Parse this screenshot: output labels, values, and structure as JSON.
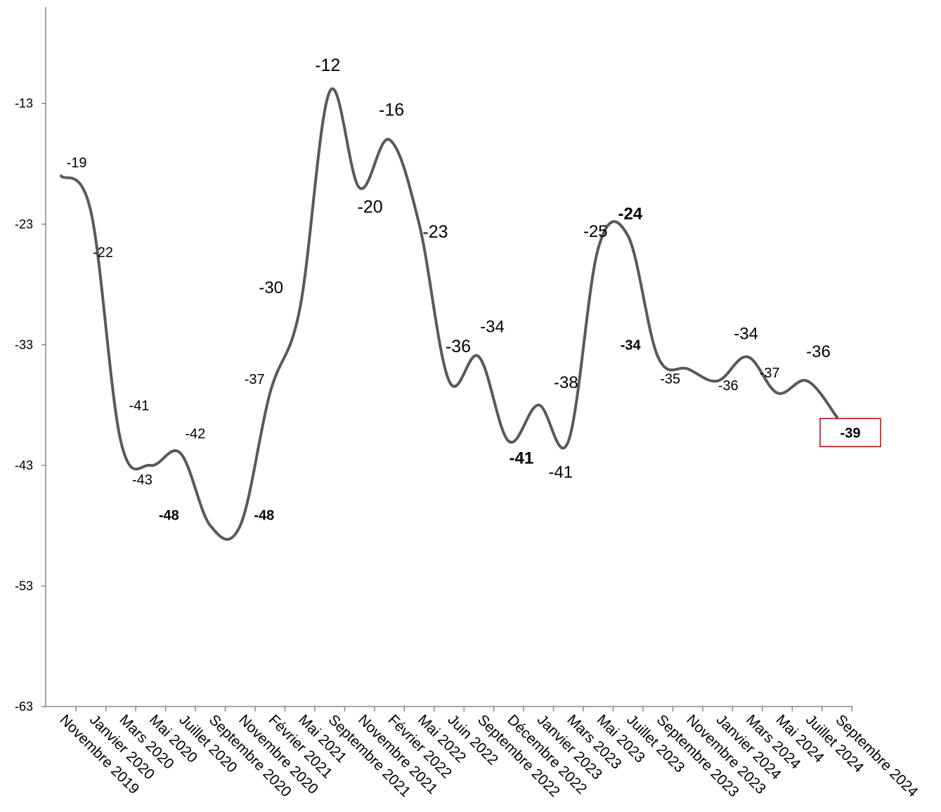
{
  "chart_data": {
    "type": "line",
    "title": "",
    "xlabel": "",
    "ylabel": "",
    "ylim": [
      -63,
      -5
    ],
    "y_ticks": [
      -13,
      -23,
      -33,
      -43,
      -53,
      -63
    ],
    "grid": false,
    "legend": "none",
    "line_color": "#595959",
    "highlight_color": "#C00000",
    "categories": [
      "Novembre 2019",
      "Janvier 2020",
      "Mars 2020",
      "Mai 2020",
      "Juillet 2020",
      "Septembre 2020",
      "Novembre 2020",
      "Février 2021",
      "Mai 2021",
      "Septembre 2021",
      "Novembre 2021",
      "Février 2022",
      "Mai 2022",
      "Juin 2022",
      "Septembre 2022",
      "Décembre 2022",
      "Janvier 2023",
      "Mars 2023",
      "Mai 2023",
      "Juillet 2023",
      "Septembre 2023",
      "Novembre 2023",
      "Janvier 2024",
      "Mars 2024",
      "Mai 2024",
      "Juillet 2024",
      "Septembre 2024"
    ],
    "series": [
      {
        "values": [
          -19,
          -22,
          -41,
          -43,
          -42,
          -48,
          -48,
          -37,
          -30,
          -12,
          -20,
          -16,
          -23,
          -36,
          -34,
          -41,
          -38,
          -41,
          -25,
          -24,
          -34,
          -35,
          -36,
          -34,
          -37,
          -36,
          -39
        ],
        "labels": [
          "-19",
          "-22",
          "-41",
          "-43",
          "-42",
          "-48",
          "-48",
          "-37",
          "-30",
          "-12",
          "-20",
          "-16",
          "-23",
          "-36",
          "-34",
          "-41",
          "-38",
          "-41",
          "-25",
          "-24",
          "-34",
          "-35",
          "-36",
          "-34",
          "-37",
          "-36",
          "-39"
        ]
      }
    ]
  }
}
